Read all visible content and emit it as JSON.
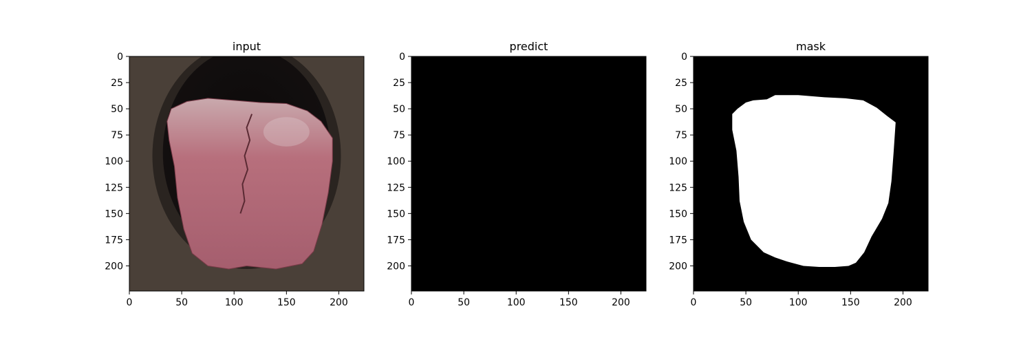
{
  "figure": {
    "background": "#ffffff"
  },
  "chart_data": [
    {
      "type": "image",
      "title": "input",
      "xlabel": "",
      "ylabel": "",
      "xlim": [
        0,
        224
      ],
      "ylim": [
        224,
        0
      ],
      "xticks": [
        0,
        50,
        100,
        150,
        200
      ],
      "yticks": [
        0,
        25,
        50,
        75,
        100,
        125,
        150,
        175,
        200
      ],
      "content": "photo of open mouth with tongue",
      "colors": {
        "background": "#4a4038",
        "mouth": "#141010",
        "tongue": "#b76f7c"
      }
    },
    {
      "type": "image",
      "title": "predict",
      "xlabel": "",
      "ylabel": "",
      "xlim": [
        0,
        224
      ],
      "ylim": [
        224,
        0
      ],
      "xticks": [
        0,
        50,
        100,
        150,
        200
      ],
      "yticks": [
        0,
        25,
        50,
        75,
        100,
        125,
        150,
        175,
        200
      ],
      "content": "all-black prediction mask",
      "colors": {
        "background": "#000000"
      }
    },
    {
      "type": "image",
      "title": "mask",
      "xlabel": "",
      "ylabel": "",
      "xlim": [
        0,
        224
      ],
      "ylim": [
        224,
        0
      ],
      "xticks": [
        0,
        50,
        100,
        150,
        200
      ],
      "yticks": [
        0,
        25,
        50,
        75,
        100,
        125,
        150,
        175,
        200
      ],
      "content": "white tongue region on black background",
      "colors": {
        "background": "#000000",
        "foreground": "#ffffff"
      },
      "region_outline": [
        [
          37,
          55
        ],
        [
          42,
          50
        ],
        [
          50,
          44
        ],
        [
          57,
          42
        ],
        [
          70,
          41
        ],
        [
          78,
          37
        ],
        [
          100,
          37
        ],
        [
          125,
          39
        ],
        [
          145,
          40
        ],
        [
          162,
          42
        ],
        [
          175,
          49
        ],
        [
          185,
          57
        ],
        [
          193,
          63
        ],
        [
          191,
          92
        ],
        [
          189,
          119
        ],
        [
          186,
          140
        ],
        [
          180,
          155
        ],
        [
          170,
          172
        ],
        [
          163,
          187
        ],
        [
          155,
          197
        ],
        [
          148,
          200
        ],
        [
          135,
          201
        ],
        [
          120,
          201
        ],
        [
          105,
          200
        ],
        [
          90,
          196
        ],
        [
          78,
          192
        ],
        [
          67,
          187
        ],
        [
          55,
          175
        ],
        [
          48,
          158
        ],
        [
          44,
          138
        ],
        [
          43,
          115
        ],
        [
          41,
          90
        ],
        [
          37,
          70
        ],
        [
          37,
          58
        ]
      ]
    }
  ]
}
